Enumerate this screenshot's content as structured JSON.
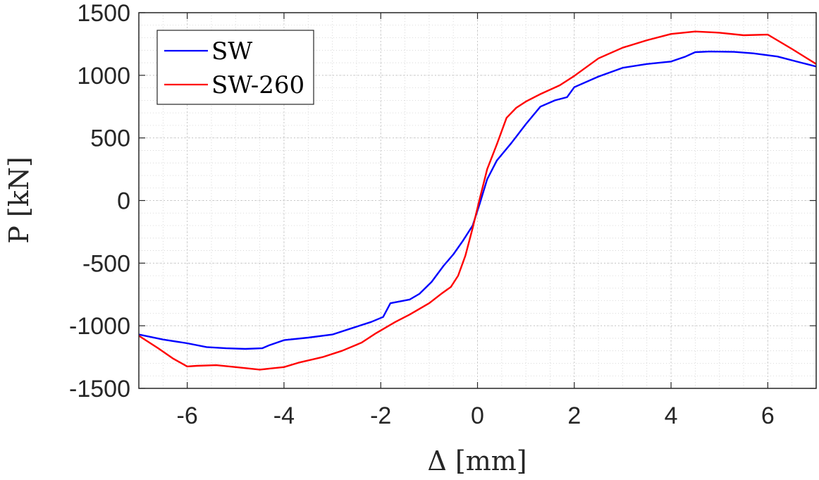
{
  "chart_data": {
    "type": "line",
    "xlabel": "Δ [mm]",
    "ylabel": "P [kN]",
    "xlim": [
      -7,
      7
    ],
    "ylim": [
      -1500,
      1500
    ],
    "xticks": [
      -6,
      -4,
      -2,
      0,
      2,
      4,
      6
    ],
    "yticks": [
      -1500,
      -1000,
      -500,
      0,
      500,
      1000,
      1500
    ],
    "grid": true,
    "minor_grid": true,
    "legend_position": "top-left",
    "series": [
      {
        "name": "SW",
        "color": "#0000ff",
        "points": [
          [
            -7,
            -1070
          ],
          [
            -6.5,
            -1110
          ],
          [
            -6,
            -1140
          ],
          [
            -5.6,
            -1170
          ],
          [
            -5.2,
            -1180
          ],
          [
            -4.8,
            -1185
          ],
          [
            -4.45,
            -1180
          ],
          [
            -4.3,
            -1155
          ],
          [
            -4.0,
            -1115
          ],
          [
            -3.5,
            -1095
          ],
          [
            -3.0,
            -1070
          ],
          [
            -2.6,
            -1020
          ],
          [
            -2.2,
            -970
          ],
          [
            -1.95,
            -930
          ],
          [
            -1.8,
            -820
          ],
          [
            -1.4,
            -790
          ],
          [
            -1.2,
            -745
          ],
          [
            -0.95,
            -650
          ],
          [
            -0.7,
            -520
          ],
          [
            -0.5,
            -430
          ],
          [
            -0.3,
            -320
          ],
          [
            -0.1,
            -200
          ],
          [
            0.05,
            -20
          ],
          [
            0.2,
            170
          ],
          [
            0.4,
            320
          ],
          [
            0.7,
            460
          ],
          [
            1.0,
            610
          ],
          [
            1.3,
            750
          ],
          [
            1.6,
            800
          ],
          [
            1.85,
            825
          ],
          [
            2.0,
            905
          ],
          [
            2.5,
            990
          ],
          [
            3.0,
            1060
          ],
          [
            3.5,
            1090
          ],
          [
            4.0,
            1110
          ],
          [
            4.3,
            1150
          ],
          [
            4.5,
            1185
          ],
          [
            4.8,
            1190
          ],
          [
            5.3,
            1187
          ],
          [
            5.7,
            1175
          ],
          [
            6.2,
            1150
          ],
          [
            6.7,
            1100
          ],
          [
            7,
            1070
          ]
        ]
      },
      {
        "name": "SW-260",
        "color": "#ff0000",
        "points": [
          [
            -7,
            -1080
          ],
          [
            -6.6,
            -1180
          ],
          [
            -6.3,
            -1260
          ],
          [
            -6.0,
            -1325
          ],
          [
            -5.8,
            -1320
          ],
          [
            -5.4,
            -1315
          ],
          [
            -5.0,
            -1330
          ],
          [
            -4.5,
            -1350
          ],
          [
            -4.0,
            -1330
          ],
          [
            -3.7,
            -1295
          ],
          [
            -3.2,
            -1250
          ],
          [
            -2.8,
            -1200
          ],
          [
            -2.4,
            -1135
          ],
          [
            -2.1,
            -1060
          ],
          [
            -1.7,
            -970
          ],
          [
            -1.4,
            -910
          ],
          [
            -1.0,
            -820
          ],
          [
            -0.75,
            -745
          ],
          [
            -0.55,
            -690
          ],
          [
            -0.4,
            -600
          ],
          [
            -0.25,
            -440
          ],
          [
            -0.1,
            -220
          ],
          [
            0.05,
            20
          ],
          [
            0.2,
            250
          ],
          [
            0.4,
            450
          ],
          [
            0.6,
            660
          ],
          [
            0.8,
            740
          ],
          [
            1.0,
            790
          ],
          [
            1.3,
            850
          ],
          [
            1.7,
            920
          ],
          [
            2.0,
            995
          ],
          [
            2.5,
            1135
          ],
          [
            3.0,
            1220
          ],
          [
            3.5,
            1280
          ],
          [
            4.0,
            1330
          ],
          [
            4.5,
            1350
          ],
          [
            5.0,
            1340
          ],
          [
            5.5,
            1320
          ],
          [
            6.0,
            1325
          ],
          [
            6.5,
            1210
          ],
          [
            7,
            1090
          ]
        ]
      }
    ]
  }
}
